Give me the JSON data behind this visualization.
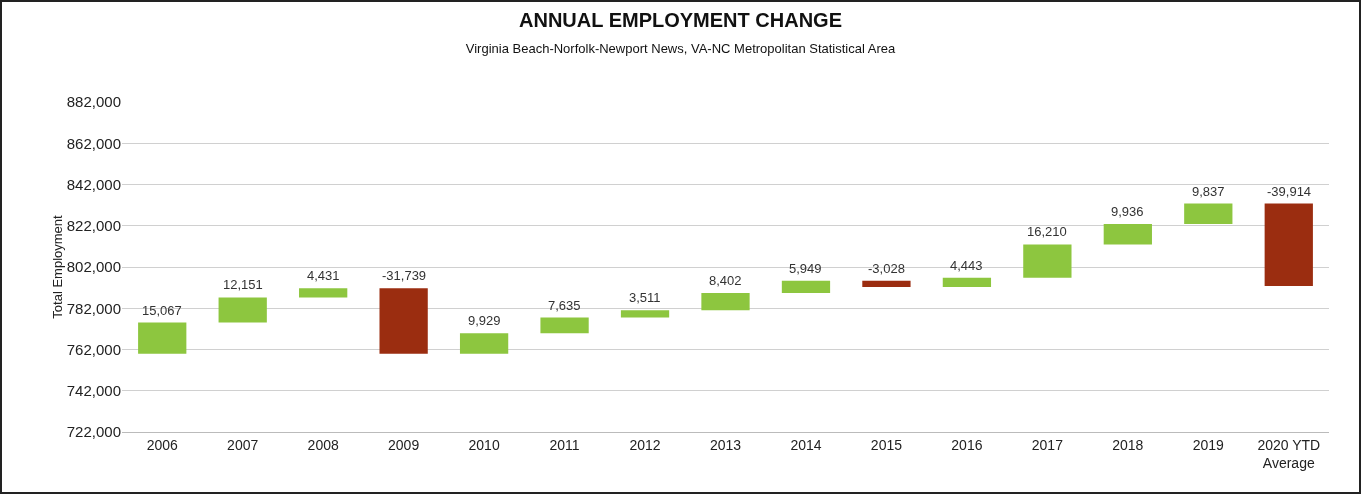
{
  "chart_data": {
    "type": "bar",
    "title": "ANNUAL EMPLOYMENT CHANGE",
    "subtitle": "Virginia Beach-Norfolk-Newport News, VA-NC Metropolitan Statistical Area",
    "ylabel": "Total Employment",
    "categories": [
      "2006",
      "2007",
      "2008",
      "2009",
      "2010",
      "2011",
      "2012",
      "2013",
      "2014",
      "2015",
      "2016",
      "2017",
      "2018",
      "2019",
      "2020 YTD Average"
    ],
    "values": [
      15067,
      12151,
      4431,
      -31739,
      9929,
      7635,
      3511,
      8402,
      5949,
      -3028,
      4443,
      16210,
      9936,
      9837,
      -39914
    ],
    "base": [
      760000,
      775067,
      787218,
      791649,
      759910,
      769839,
      777474,
      780985,
      789387,
      795336,
      792308,
      796751,
      812961,
      822897,
      832734
    ],
    "colors": [
      "#8dc63f",
      "#8dc63f",
      "#8dc63f",
      "#9b2d10",
      "#8dc63f",
      "#8dc63f",
      "#8dc63f",
      "#8dc63f",
      "#8dc63f",
      "#9b2d10",
      "#8dc63f",
      "#8dc63f",
      "#8dc63f",
      "#8dc63f",
      "#9b2d10"
    ],
    "value_labels": [
      "15,067",
      "12,151",
      "4,431",
      "-31,739",
      "9,929",
      "7,635",
      "3,511",
      "8,402",
      "5,949",
      "-3,028",
      "4,443",
      "16,210",
      "9,936",
      "9,837",
      "-39,914"
    ],
    "ylim": [
      722000,
      882000
    ],
    "yticks": [
      {
        "value": 722000,
        "label": "722,000"
      },
      {
        "value": 742000,
        "label": "742,000"
      },
      {
        "value": 762000,
        "label": "762,000"
      },
      {
        "value": 782000,
        "label": "782,000"
      },
      {
        "value": 802000,
        "label": "802,000"
      },
      {
        "value": 822000,
        "label": "822,000"
      },
      {
        "value": 842000,
        "label": "842,000"
      },
      {
        "value": 862000,
        "label": "862,000"
      },
      {
        "value": 882000,
        "label": "882,000"
      }
    ],
    "grid": "y"
  }
}
